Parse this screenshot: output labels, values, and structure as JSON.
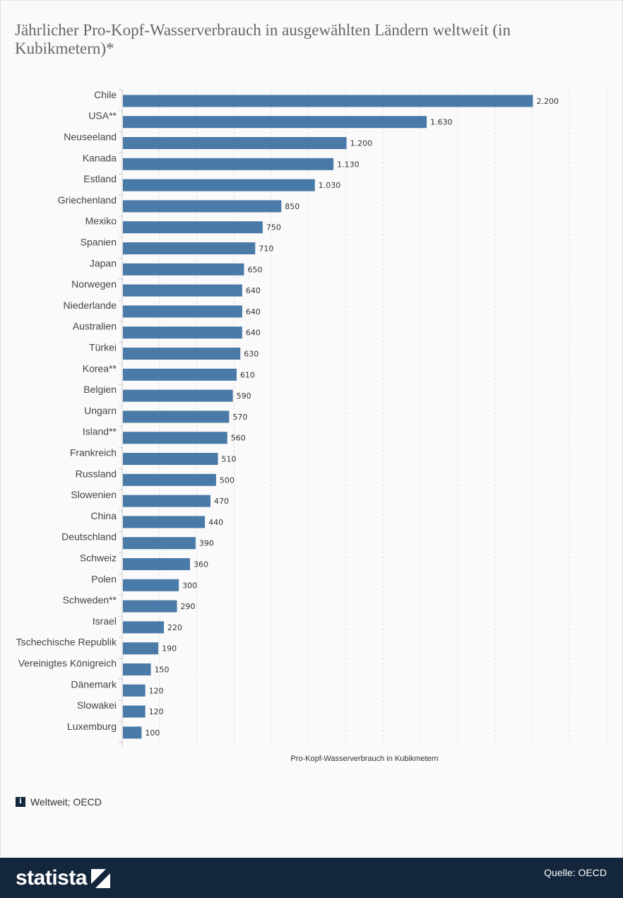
{
  "title": "Jährlicher Pro-Kopf-Wasserverbrauch in ausgewählten Ländern weltweit (in Kubikmetern)*",
  "chart_data": {
    "type": "bar",
    "orientation": "horizontal",
    "categories": [
      "Chile",
      "USA**",
      "Neuseeland",
      "Kanada",
      "Estland",
      "Griechenland",
      "Mexiko",
      "Spanien",
      "Japan",
      "Norwegen",
      "Niederlande",
      "Australien",
      "Türkei",
      "Korea**",
      "Belgien",
      "Ungarn",
      "Island**",
      "Frankreich",
      "Russland",
      "Slowenien",
      "China",
      "Deutschland",
      "Schweiz",
      "Polen",
      "Schweden**",
      "Israel",
      "Tschechische Republik",
      "Vereinigtes Königreich",
      "Dänemark",
      "Slowakei",
      "Luxemburg"
    ],
    "values": [
      2200,
      1630,
      1200,
      1130,
      1030,
      850,
      750,
      710,
      650,
      640,
      640,
      640,
      630,
      610,
      590,
      570,
      560,
      510,
      500,
      470,
      440,
      390,
      360,
      300,
      290,
      220,
      190,
      150,
      120,
      120,
      100
    ],
    "value_labels": [
      "2.200",
      "1.630",
      "1.200",
      "1.130",
      "1.030",
      "850",
      "750",
      "710",
      "650",
      "640",
      "640",
      "640",
      "630",
      "610",
      "590",
      "570",
      "560",
      "510",
      "500",
      "470",
      "440",
      "390",
      "360",
      "300",
      "290",
      "220",
      "190",
      "150",
      "120",
      "120",
      "100"
    ],
    "xlabel": "Pro-Kopf-Wasserverbrauch in Kubikmetern",
    "xlim": [
      0,
      2600
    ],
    "grid": true,
    "bar_color": "#4a7aa7",
    "grid_color": "#dddddd"
  },
  "source_note": {
    "icon": "info-icon",
    "icon_glyph": "i",
    "text": "Weltweit; OECD"
  },
  "footer": {
    "logo_text": "statista",
    "quelle": "Quelle: OECD",
    "background": "#13263c"
  }
}
